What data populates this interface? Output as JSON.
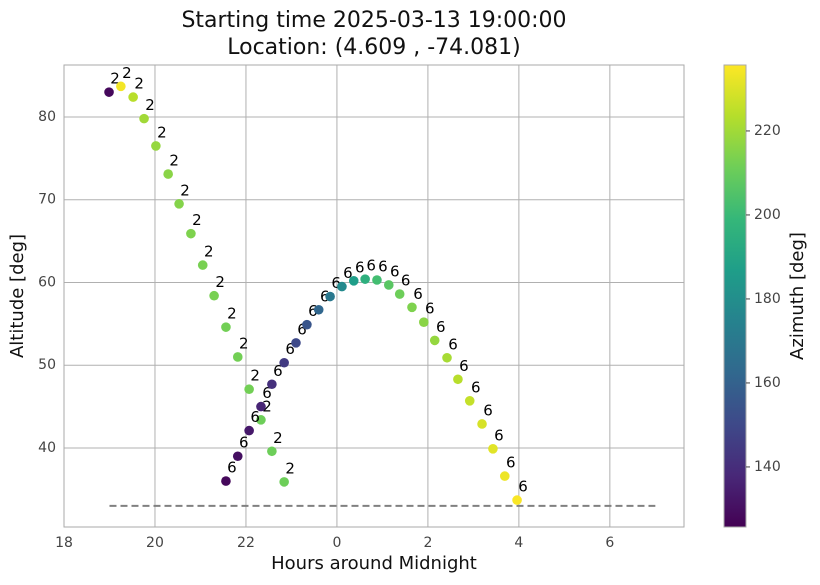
{
  "chart_data": {
    "type": "scatter",
    "title": "Starting time 2025-03-13 19:00:00",
    "subtitle": "Location: (4.609 , -74.081)",
    "x_label": "Hours around Midnight",
    "y_label": "Altitude [deg]",
    "xlim": [
      -6,
      7.63
    ],
    "ylim": [
      30.45,
      86.28
    ],
    "xticks": [
      {
        "value": -6,
        "label": "18"
      },
      {
        "value": -4,
        "label": "20"
      },
      {
        "value": -2,
        "label": "22"
      },
      0,
      2,
      4,
      6
    ],
    "yticks": [
      40,
      50,
      60,
      70,
      80
    ],
    "grid": true,
    "colorbar": {
      "label": "Azimuth [deg]",
      "lim": [
        125.7,
        235.7
      ],
      "ticks": [
        140,
        160,
        180,
        200,
        220
      ],
      "colormap": "viridis"
    },
    "hline": {
      "y": 33,
      "xmin": -5,
      "xmax": 7,
      "color": "#808080"
    },
    "series": [
      {
        "name": "2",
        "x": [
          -5.01,
          -4.75,
          -4.48,
          -4.24,
          -3.98,
          -3.71,
          -3.47,
          -3.21,
          -2.95,
          -2.7,
          -2.44,
          -2.18,
          -1.93,
          -1.67,
          -1.43,
          -1.16
        ],
        "values": [
          83.0,
          83.7,
          82.4,
          79.8,
          76.5,
          73.1,
          69.5,
          65.9,
          62.1,
          58.4,
          54.6,
          51.0,
          47.1,
          43.4,
          39.6,
          35.9
        ],
        "azimuth": [
          128,
          234,
          224,
          220,
          218,
          216,
          215,
          214,
          213,
          213,
          212,
          212,
          212,
          211,
          211,
          211
        ]
      },
      {
        "name": "6",
        "x": [
          -2.44,
          -2.18,
          -1.93,
          -1.67,
          -1.43,
          -1.16,
          -0.9,
          -0.66,
          -0.4,
          -0.15,
          0.11,
          0.37,
          0.62,
          0.88,
          1.14,
          1.38,
          1.65,
          1.91,
          2.15,
          2.42,
          2.66,
          2.92,
          3.19,
          3.43,
          3.69,
          3.96
        ],
        "values": [
          36.0,
          39.0,
          42.1,
          45.0,
          47.7,
          50.3,
          52.7,
          54.9,
          56.7,
          58.3,
          59.5,
          60.2,
          60.4,
          60.3,
          59.7,
          58.6,
          57.0,
          55.2,
          53.0,
          50.9,
          48.3,
          45.7,
          42.9,
          39.9,
          36.6,
          33.7
        ],
        "azimuth": [
          128,
          130,
          133,
          137,
          141,
          145,
          150,
          155,
          162,
          170,
          178,
          187,
          195,
          202,
          207,
          211,
          214,
          216,
          218,
          221,
          224,
          226,
          229,
          231,
          233,
          235
        ]
      }
    ]
  }
}
